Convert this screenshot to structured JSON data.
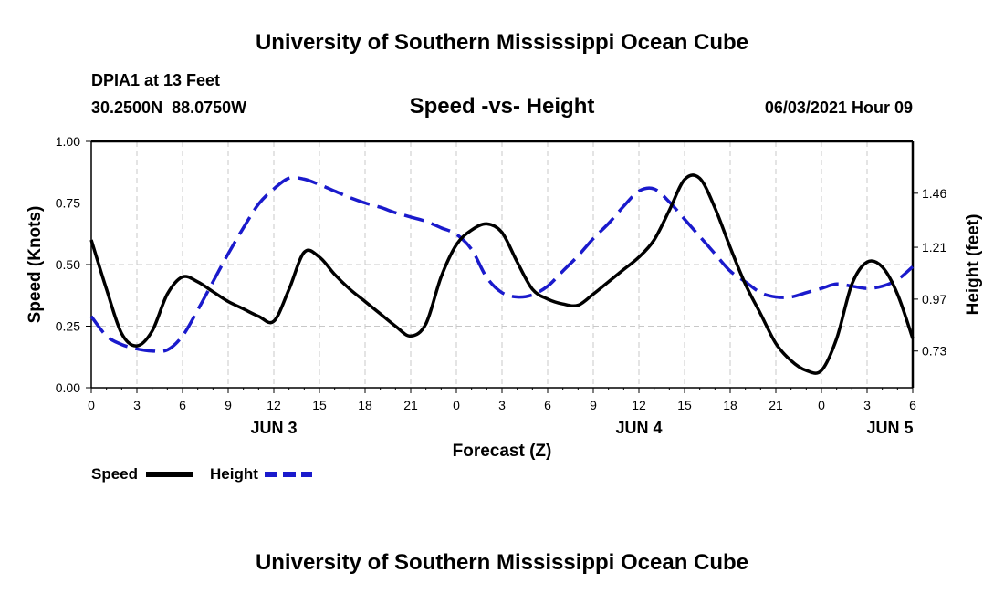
{
  "page_title_top": "University of Southern Mississippi Ocean Cube",
  "page_title_bottom": "University of Southern Mississippi Ocean Cube",
  "station": {
    "name": "DPIA1 at 13 Feet",
    "coords": "30.2500N  88.0750W"
  },
  "timestamp": "06/03/2021 Hour 09",
  "chart_data": {
    "type": "line",
    "title": "Speed -vs- Height",
    "xlabel": "Forecast (Z)",
    "ylabel_left": "Speed (Knots)",
    "ylabel_right": "Height (feet)",
    "x_range_hours": [
      0,
      54
    ],
    "x_ticks": [
      {
        "h": 0,
        "label": "0"
      },
      {
        "h": 3,
        "label": "3"
      },
      {
        "h": 6,
        "label": "6"
      },
      {
        "h": 9,
        "label": "9"
      },
      {
        "h": 12,
        "label": "12"
      },
      {
        "h": 15,
        "label": "15"
      },
      {
        "h": 18,
        "label": "18"
      },
      {
        "h": 21,
        "label": "21"
      },
      {
        "h": 24,
        "label": "0"
      },
      {
        "h": 27,
        "label": "3"
      },
      {
        "h": 30,
        "label": "6"
      },
      {
        "h": 33,
        "label": "9"
      },
      {
        "h": 36,
        "label": "12"
      },
      {
        "h": 39,
        "label": "15"
      },
      {
        "h": 42,
        "label": "18"
      },
      {
        "h": 45,
        "label": "21"
      },
      {
        "h": 48,
        "label": "0"
      },
      {
        "h": 51,
        "label": "3"
      },
      {
        "h": 54,
        "label": "6"
      }
    ],
    "day_labels": [
      {
        "h": 12,
        "label": "JUN 3"
      },
      {
        "h": 36,
        "label": "JUN 4"
      },
      {
        "h": 52.5,
        "label": "JUN 5"
      }
    ],
    "y_left": {
      "range": [
        0,
        1
      ],
      "ticks": [
        "0.00",
        "0.25",
        "0.50",
        "0.75",
        "1.00"
      ],
      "tick_values": [
        0,
        0.25,
        0.5,
        0.75,
        1.0
      ]
    },
    "y_right": {
      "range": [
        0.56,
        1.7
      ],
      "ticks": [
        "0.73",
        "0.97",
        "1.21",
        "1.46"
      ],
      "tick_values": [
        0.73,
        0.97,
        1.21,
        1.46
      ]
    },
    "grid": true,
    "legend": {
      "placement": "bottom-left"
    },
    "series": [
      {
        "name": "Speed",
        "axis": "left",
        "color": "#000000",
        "dashed": false,
        "x": [
          0,
          1,
          2,
          3,
          4,
          5,
          6,
          7,
          8,
          9,
          10,
          11,
          12,
          13,
          14,
          15,
          16,
          17,
          18,
          19,
          20,
          21,
          22,
          23,
          24,
          25,
          26,
          27,
          28,
          29,
          30,
          31,
          32,
          33,
          34,
          35,
          36,
          37,
          38,
          39,
          40,
          41,
          42,
          43,
          44,
          45,
          46,
          47,
          48,
          49,
          50,
          51,
          52,
          53,
          54
        ],
        "values": [
          0.6,
          0.4,
          0.22,
          0.17,
          0.23,
          0.38,
          0.45,
          0.43,
          0.39,
          0.35,
          0.32,
          0.29,
          0.27,
          0.4,
          0.55,
          0.53,
          0.46,
          0.4,
          0.35,
          0.3,
          0.25,
          0.21,
          0.26,
          0.45,
          0.58,
          0.64,
          0.665,
          0.63,
          0.51,
          0.4,
          0.36,
          0.34,
          0.335,
          0.38,
          0.43,
          0.48,
          0.53,
          0.6,
          0.72,
          0.845,
          0.85,
          0.73,
          0.57,
          0.42,
          0.3,
          0.18,
          0.11,
          0.07,
          0.07,
          0.2,
          0.42,
          0.51,
          0.49,
          0.38,
          0.2
        ]
      },
      {
        "name": "Height",
        "axis": "right",
        "color": "#1a1acc",
        "dashed": true,
        "x": [
          0,
          1,
          2,
          3,
          4,
          5,
          6,
          7,
          8,
          9,
          10,
          11,
          12,
          13,
          14,
          15,
          16,
          17,
          18,
          19,
          20,
          21,
          22,
          23,
          24,
          25,
          26,
          27,
          28,
          29,
          30,
          31,
          32,
          33,
          34,
          35,
          36,
          37,
          38,
          39,
          40,
          41,
          42,
          43,
          44,
          45,
          46,
          47,
          48,
          49,
          50,
          51,
          52,
          53,
          54
        ],
        "values": [
          0.89,
          0.8,
          0.76,
          0.74,
          0.73,
          0.735,
          0.8,
          0.92,
          1.05,
          1.18,
          1.3,
          1.41,
          1.48,
          1.53,
          1.525,
          1.5,
          1.47,
          1.44,
          1.415,
          1.395,
          1.37,
          1.35,
          1.33,
          1.3,
          1.27,
          1.2,
          1.07,
          1.0,
          0.98,
          0.99,
          1.03,
          1.1,
          1.17,
          1.25,
          1.32,
          1.4,
          1.47,
          1.48,
          1.42,
          1.34,
          1.26,
          1.18,
          1.1,
          1.05,
          1.0,
          0.98,
          0.98,
          1.0,
          1.02,
          1.04,
          1.03,
          1.02,
          1.03,
          1.06,
          1.12
        ]
      }
    ]
  }
}
